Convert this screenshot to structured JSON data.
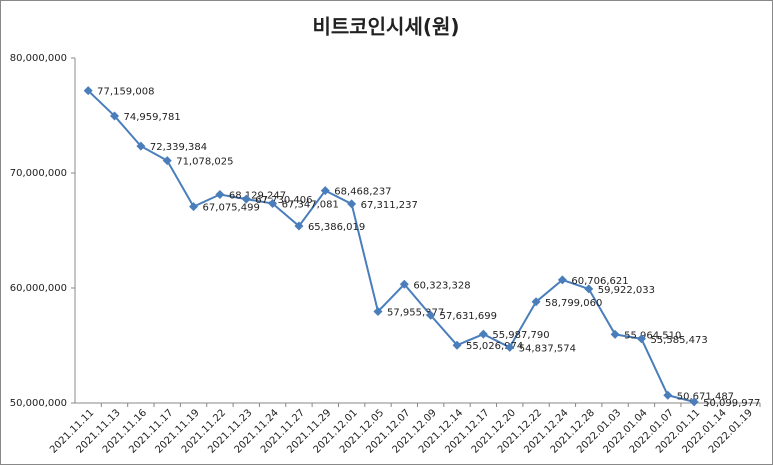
{
  "chart_data": {
    "type": "line",
    "title": "비트코인시세(원)",
    "categories": [
      "2021.11.11",
      "2021.11.13",
      "2021.11.16",
      "2021.11.17",
      "2021.11.19",
      "2021.11.22",
      "2021.11.23",
      "2021.11.24",
      "2021.11.27",
      "2021.11.29",
      "2021.12.01",
      "2021.12.05",
      "2021.12.07",
      "2021.12.09",
      "2021.12.14",
      "2021.12.17",
      "2021.12.20",
      "2021.12.22",
      "2021.12.24",
      "2021.12.28",
      "2022.01.03",
      "2022.01.04",
      "2022.01.07",
      "2022.01.11",
      "2022.01.14",
      "2022.01.19"
    ],
    "values": [
      77159008,
      74959781,
      72339384,
      71078025,
      67075499,
      68129247,
      67730406,
      67347081,
      65386019,
      68468237,
      67311237,
      57955377,
      60323328,
      57631699,
      55026974,
      55987790,
      54837574,
      58799060,
      60706621,
      59922033,
      55964510,
      55585473,
      50671487,
      50099977,
      null,
      null
    ],
    "value_labels": [
      "77,159,008",
      "74,959,781",
      "72,339,384",
      "71,078,025",
      "67,075,499",
      "68,129,247",
      "67,730,406",
      "67,347,081",
      "65,386,019",
      "68,468,237",
      "67,311,237",
      "57,955,377",
      "60,323,328",
      "57,631,699",
      "55,026,974",
      "55,987,790",
      "54,837,574",
      "58,799,060",
      "60,706,621",
      "59,922,033",
      "55,964,510",
      "55,585,473",
      "50,671,487",
      "50,099,977",
      null,
      null
    ],
    "color": "#4a7ebb",
    "ylim": [
      50000000,
      80000000
    ],
    "yticks": [
      {
        "value": 50000000,
        "label": "50,000,000"
      },
      {
        "value": 60000000,
        "label": "60,000,000"
      },
      {
        "value": 70000000,
        "label": "70,000,000"
      },
      {
        "value": 80000000,
        "label": "80,000,000"
      }
    ],
    "grid": false
  }
}
